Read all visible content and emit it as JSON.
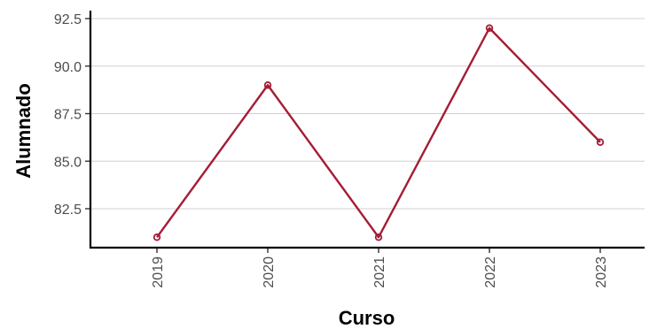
{
  "chart_data": {
    "type": "line",
    "xlabel": "Curso",
    "ylabel": "Alumnado",
    "categories": [
      "2019",
      "2020",
      "2021",
      "2022",
      "2023"
    ],
    "series": [
      {
        "values": [
          81,
          89,
          81,
          92,
          86
        ]
      }
    ],
    "y_ticks": [
      "82.5",
      "85.0",
      "87.5",
      "90.0",
      "92.5"
    ],
    "ylim": [
      80.4,
      92.6
    ],
    "grid": "horizontal major only",
    "x_tick_orientation": "vertical",
    "colors": {
      "series": "#a51c36",
      "grid": "#d0d0d0",
      "axis": "#000000"
    }
  }
}
